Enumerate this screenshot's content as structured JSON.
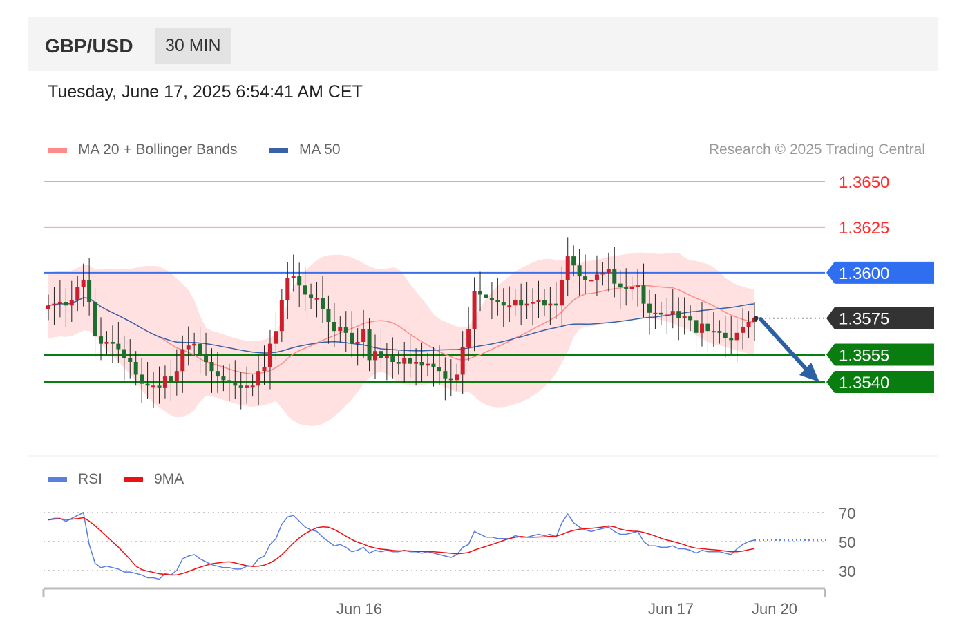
{
  "header": {
    "pair": "GBP/USD",
    "timeframe": "30 MIN"
  },
  "timestamp": "Tuesday, June 17, 2025 6:54:41 AM CET",
  "legend": {
    "ma20": {
      "label": "MA 20 + Bollinger Bands",
      "color": "#ff8a8a"
    },
    "ma50": {
      "label": "MA 50",
      "color": "#3a62a8"
    },
    "credit": "Research © 2025 Trading Central"
  },
  "rsi_legend": {
    "rsi": {
      "label": "RSI",
      "color": "#5b7fe0"
    },
    "ma9": {
      "label": "9MA",
      "color": "#e11"
    }
  },
  "levels": [
    {
      "value": "1.3650",
      "kind": "resistance-line",
      "color": "#ff2a2a"
    },
    {
      "value": "1.3625",
      "kind": "resistance-line",
      "color": "#ff2a2a"
    },
    {
      "value": "1.3600",
      "kind": "pivot",
      "color": "#2f6ef0"
    },
    {
      "value": "1.3575",
      "kind": "last-price",
      "color": "#333333"
    },
    {
      "value": "1.3555",
      "kind": "support",
      "color": "#0a7d10"
    },
    {
      "value": "1.3540",
      "kind": "support",
      "color": "#0a7d10"
    }
  ],
  "rsi_levels": [
    "70",
    "50",
    "30"
  ],
  "x_labels": [
    "Jun 16",
    "Jun 17",
    "Jun 20"
  ],
  "chart_data": {
    "type": "candlestick",
    "title": "GBP/USD",
    "ylim": [
      1.3505,
      1.3665
    ],
    "close": [
      1.3582,
      1.3583,
      1.3584,
      1.3582,
      1.3585,
      1.3592,
      1.3596,
      1.3584,
      1.3565,
      1.3561,
      1.3562,
      1.3561,
      1.3558,
      1.3553,
      1.3551,
      1.3544,
      1.3539,
      1.3538,
      1.3538,
      1.3537,
      1.3543,
      1.354,
      1.3546,
      1.3558,
      1.356,
      1.3561,
      1.3555,
      1.3551,
      1.3546,
      1.3543,
      1.3541,
      1.354,
      1.3538,
      1.3537,
      1.3538,
      1.3538,
      1.3546,
      1.3548,
      1.3561,
      1.3568,
      1.3585,
      1.3597,
      1.3598,
      1.3593,
      1.3588,
      1.3586,
      1.3586,
      1.358,
      1.3573,
      1.3568,
      1.357,
      1.3567,
      1.3561,
      1.3562,
      1.3569,
      1.3552,
      1.3557,
      1.3553,
      1.3554,
      1.3551,
      1.355,
      1.3553,
      1.355,
      1.3551,
      1.3549,
      1.355,
      1.3548,
      1.3546,
      1.3542,
      1.3541,
      1.3544,
      1.3559,
      1.3569,
      1.359,
      1.3588,
      1.3586,
      1.3585,
      1.3584,
      1.3582,
      1.3582,
      1.3585,
      1.3582,
      1.3583,
      1.3584,
      1.3585,
      1.3582,
      1.3583,
      1.3582,
      1.3596,
      1.3609,
      1.3604,
      1.3598,
      1.3596,
      1.3596,
      1.3599,
      1.36,
      1.3602,
      1.3594,
      1.3592,
      1.3591,
      1.3592,
      1.3593,
      1.3583,
      1.3578,
      1.3578,
      1.3577,
      1.3577,
      1.3579,
      1.3575,
      1.3576,
      1.3574,
      1.3567,
      1.3572,
      1.3568,
      1.3568,
      1.3567,
      1.3564,
      1.3563,
      1.3567,
      1.357,
      1.3573,
      1.3575
    ],
    "rsi": [
      65,
      66,
      66,
      64,
      66,
      68,
      70,
      48,
      35,
      32,
      33,
      32,
      31,
      29,
      29,
      28,
      27,
      25,
      25,
      24,
      28,
      27,
      30,
      38,
      40,
      41,
      38,
      36,
      34,
      33,
      32,
      32,
      31,
      31,
      33,
      33,
      38,
      40,
      48,
      52,
      62,
      67,
      68,
      64,
      60,
      58,
      57,
      53,
      50,
      47,
      48,
      46,
      43,
      44,
      46,
      42,
      44,
      43,
      44,
      43,
      43,
      44,
      43,
      43,
      42,
      43,
      42,
      41,
      40,
      39,
      41,
      46,
      48,
      57,
      55,
      53,
      53,
      52,
      52,
      52,
      54,
      53,
      53,
      54,
      55,
      54,
      55,
      53,
      63,
      69,
      63,
      60,
      58,
      57,
      58,
      59,
      60,
      57,
      55,
      55,
      56,
      57,
      50,
      47,
      47,
      46,
      46,
      47,
      45,
      45,
      44,
      42,
      44,
      43,
      43,
      43,
      42,
      41,
      45,
      48,
      50,
      51
    ],
    "rsi_ylim": [
      20,
      80
    ]
  }
}
